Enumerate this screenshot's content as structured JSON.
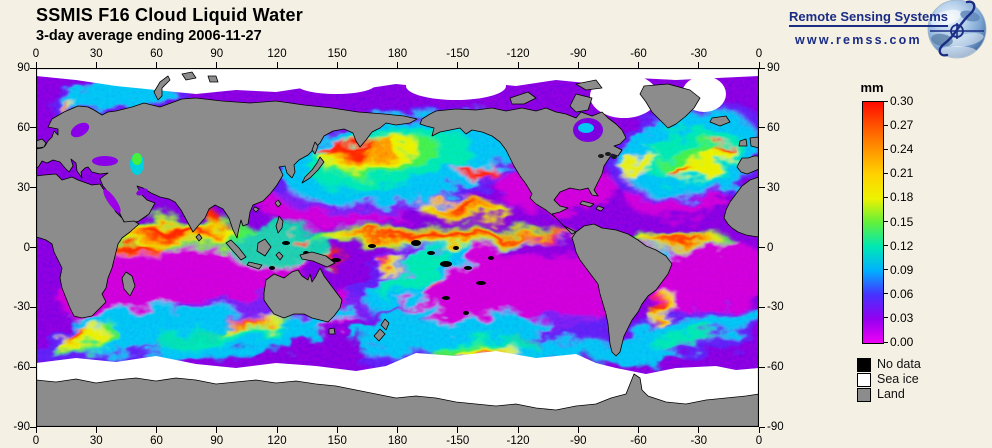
{
  "page": {
    "background": "#f4f0e3"
  },
  "header": {
    "title": "SSMIS F16 Cloud Liquid Water",
    "subtitle": "3-day average ending 2006-11-27"
  },
  "logo": {
    "company": "Remote Sensing Systems",
    "website": "www.remss.com",
    "accent_color": "#1b2c85"
  },
  "chart_data": {
    "type": "heatmap",
    "title": "SSMIS F16 Cloud Liquid Water",
    "subtitle": "3-day average ending 2006-11-27",
    "projection": "equirectangular world map, longitude 0 to 360 deg E left-to-right (dateline at center), latitude 90 to -90 top-to-bottom",
    "x_axis": {
      "tick_lons": [
        0,
        30,
        60,
        90,
        120,
        150,
        180,
        210,
        240,
        270,
        300,
        330,
        360
      ],
      "tick_labels": [
        "0",
        "30",
        "60",
        "90",
        "120",
        "150",
        "180",
        "-150",
        "-120",
        "-90",
        "-60",
        "-30",
        "0"
      ]
    },
    "y_axis": {
      "tick_lats": [
        90,
        60,
        30,
        0,
        -30,
        -60,
        -90
      ],
      "tick_labels": [
        "90",
        "60",
        "30",
        "0",
        "-30",
        "-60",
        "-90"
      ]
    },
    "colorbar": {
      "title": "mm",
      "min": 0.0,
      "max": 0.3,
      "tick_step": 0.03,
      "tick_labels": [
        "0.30",
        "0.27",
        "0.24",
        "0.21",
        "0.18",
        "0.15",
        "0.12",
        "0.09",
        "0.06",
        "0.03",
        "0.00"
      ],
      "colors_top_to_bottom": [
        "#ff0a00",
        "#ff5400",
        "#ff9600",
        "#ffd200",
        "#eef200",
        "#62f03c",
        "#00e8b4",
        "#00b0ff",
        "#4632ff",
        "#9400f0",
        "#ee00f5"
      ]
    },
    "legend": [
      {
        "label": "No data",
        "color": "#000000"
      },
      {
        "label": "Sea ice",
        "color": "#ffffff"
      },
      {
        "label": "Land",
        "color": "#8c8c8c"
      }
    ],
    "field_summary": "High cloud liquid water (yellow to red, up to 0.30 mm) along the ITCZ near the equator and in mid-latitude storm tracks of the North Pacific, North Atlantic and Southern Ocean; low values (purple to magenta, ~0.00-0.05 mm) over subtropical gyres; continents gray (land), polar regions white (sea ice), scattered black pixels (no data)."
  }
}
